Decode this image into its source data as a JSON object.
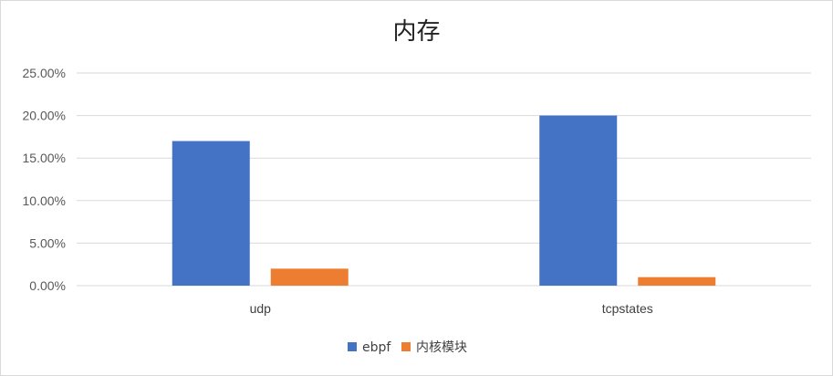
{
  "chart_data": {
    "type": "bar",
    "title": "内存",
    "xlabel": "",
    "ylabel": "",
    "categories": [
      "udp",
      "tcpstates"
    ],
    "series": [
      {
        "name": "ebpf",
        "values": [
          17.0,
          20.0
        ]
      },
      {
        "name": "内核模块",
        "values": [
          2.0,
          1.0
        ]
      }
    ],
    "ylim": [
      0,
      25
    ],
    "yticks": [
      "0.00%",
      "5.00%",
      "10.00%",
      "15.00%",
      "20.00%",
      "25.00%"
    ],
    "y_unit": "%",
    "grid": true,
    "legend_position": "bottom"
  },
  "colors": {
    "ebpf": "#4472c4",
    "kernel_module": "#ed7d31",
    "grid": "#d9d9d9"
  }
}
